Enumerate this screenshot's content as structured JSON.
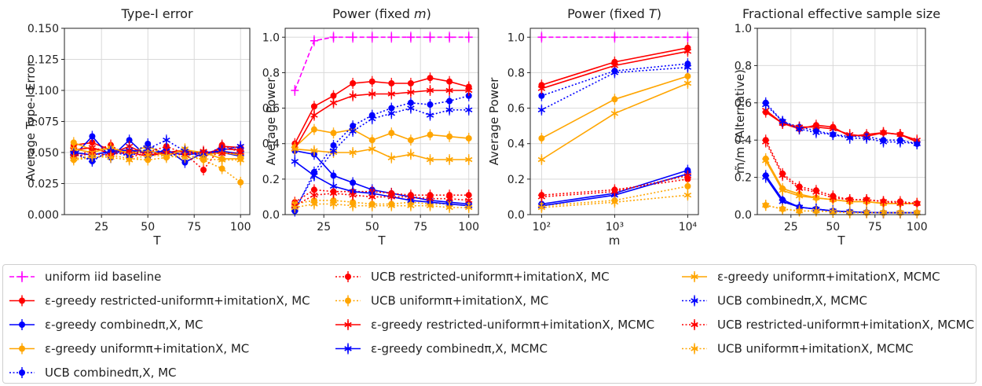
{
  "chart_data": [
    {
      "type": "line",
      "title": "Type-I error",
      "xlabel": "T",
      "ylabel": "Average Type-I Error",
      "xlim": [
        5,
        105
      ],
      "ylim": [
        0,
        0.15
      ],
      "xticks": [
        "25",
        "50",
        "75",
        "100"
      ],
      "yticks": [
        "0.000",
        "0.025",
        "0.050",
        "0.075",
        "0.100",
        "0.125",
        "0.150"
      ],
      "grid": true,
      "x": [
        10,
        20,
        30,
        40,
        50,
        60,
        70,
        80,
        90,
        100
      ],
      "series": [
        {
          "key": "eg_ru_mc",
          "values": [
            0.056,
            0.058,
            0.052,
            0.05,
            0.047,
            0.05,
            0.052,
            0.046,
            0.055,
            0.054
          ]
        },
        {
          "key": "eg_comb_mc",
          "values": [
            0.047,
            0.063,
            0.046,
            0.06,
            0.046,
            0.053,
            0.042,
            0.05,
            0.05,
            0.047
          ]
        },
        {
          "key": "eg_unif_mc",
          "values": [
            0.058,
            0.052,
            0.053,
            0.05,
            0.055,
            0.048,
            0.052,
            0.05,
            0.045,
            0.045
          ]
        },
        {
          "key": "ucb_comb_mc",
          "values": [
            0.05,
            0.043,
            0.052,
            0.048,
            0.057,
            0.047,
            0.05,
            0.047,
            0.055,
            0.052
          ]
        },
        {
          "key": "ucb_ru_mc",
          "values": [
            0.048,
            0.051,
            0.056,
            0.046,
            0.05,
            0.055,
            0.049,
            0.036,
            0.056,
            0.05
          ]
        },
        {
          "key": "ucb_unif_mc",
          "values": [
            0.044,
            0.046,
            0.048,
            0.045,
            0.044,
            0.046,
            0.049,
            0.044,
            0.037,
            0.026
          ]
        },
        {
          "key": "eg_ru_mcmc",
          "values": [
            0.052,
            0.054,
            0.049,
            0.055,
            0.048,
            0.05,
            0.051,
            0.049,
            0.053,
            0.052
          ]
        },
        {
          "key": "eg_comb_mcmc",
          "values": [
            0.05,
            0.048,
            0.051,
            0.052,
            0.05,
            0.051,
            0.048,
            0.05,
            0.051,
            0.049
          ]
        },
        {
          "key": "eg_unif_mcmc",
          "values": [
            0.053,
            0.05,
            0.054,
            0.049,
            0.052,
            0.047,
            0.053,
            0.048,
            0.05,
            0.048
          ]
        },
        {
          "key": "ucb_comb_mcmc",
          "values": [
            0.049,
            0.044,
            0.051,
            0.047,
            0.053,
            0.06,
            0.051,
            0.049,
            0.052,
            0.055
          ]
        },
        {
          "key": "ucb_ru_mcmc",
          "values": [
            0.047,
            0.049,
            0.048,
            0.051,
            0.049,
            0.05,
            0.048,
            0.051,
            0.049,
            0.05
          ]
        },
        {
          "key": "ucb_unif_mcmc",
          "values": [
            0.045,
            0.047,
            0.046,
            0.044,
            0.048,
            0.047,
            0.046,
            0.045,
            0.044,
            0.044
          ]
        }
      ]
    },
    {
      "type": "line",
      "title": "Power (fixed m)",
      "xlabel": "T",
      "ylabel": "Average Power",
      "xlim": [
        5,
        105
      ],
      "ylim": [
        0,
        1.05
      ],
      "xticks": [
        "25",
        "50",
        "75",
        "100"
      ],
      "yticks": [
        "0.0",
        "0.2",
        "0.4",
        "0.6",
        "0.8",
        "1.0"
      ],
      "grid": true,
      "x": [
        10,
        20,
        30,
        40,
        50,
        60,
        70,
        80,
        90,
        100
      ],
      "series": [
        {
          "key": "uniform",
          "values": [
            0.7,
            0.98,
            1.0,
            1.0,
            1.0,
            1.0,
            1.0,
            1.0,
            1.0,
            1.0
          ]
        },
        {
          "key": "eg_ru_mc",
          "values": [
            0.4,
            0.61,
            0.67,
            0.74,
            0.75,
            0.74,
            0.74,
            0.77,
            0.75,
            0.72
          ]
        },
        {
          "key": "eg_comb_mc",
          "values": [
            0.36,
            0.34,
            0.22,
            0.18,
            0.14,
            0.12,
            0.1,
            0.08,
            0.07,
            0.06
          ]
        },
        {
          "key": "eg_unif_mc",
          "values": [
            0.38,
            0.48,
            0.46,
            0.48,
            0.42,
            0.46,
            0.42,
            0.45,
            0.44,
            0.43
          ]
        },
        {
          "key": "ucb_comb_mc",
          "values": [
            0.02,
            0.24,
            0.39,
            0.5,
            0.56,
            0.6,
            0.63,
            0.62,
            0.64,
            0.67
          ]
        },
        {
          "key": "ucb_ru_mc",
          "values": [
            0.07,
            0.14,
            0.13,
            0.13,
            0.13,
            0.12,
            0.11,
            0.11,
            0.11,
            0.11
          ]
        },
        {
          "key": "ucb_unif_mc",
          "values": [
            0.06,
            0.08,
            0.08,
            0.07,
            0.06,
            0.06,
            0.07,
            0.06,
            0.06,
            0.05
          ]
        },
        {
          "key": "eg_ru_mcmc",
          "values": [
            0.37,
            0.56,
            0.63,
            0.67,
            0.68,
            0.68,
            0.69,
            0.7,
            0.7,
            0.7
          ]
        },
        {
          "key": "eg_comb_mcmc",
          "values": [
            0.3,
            0.22,
            0.16,
            0.13,
            0.12,
            0.1,
            0.08,
            0.07,
            0.06,
            0.05
          ]
        },
        {
          "key": "eg_unif_mcmc",
          "values": [
            0.37,
            0.36,
            0.35,
            0.35,
            0.37,
            0.32,
            0.34,
            0.31,
            0.31,
            0.31
          ]
        },
        {
          "key": "ucb_comb_mcmc",
          "values": [
            0.03,
            0.22,
            0.36,
            0.47,
            0.54,
            0.57,
            0.6,
            0.56,
            0.59,
            0.59
          ]
        },
        {
          "key": "ucb_ru_mcmc",
          "values": [
            0.05,
            0.11,
            0.12,
            0.11,
            0.1,
            0.1,
            0.1,
            0.09,
            0.09,
            0.08
          ]
        },
        {
          "key": "ucb_unif_mcmc",
          "values": [
            0.04,
            0.06,
            0.06,
            0.05,
            0.05,
            0.05,
            0.05,
            0.05,
            0.04,
            0.04
          ]
        }
      ]
    },
    {
      "type": "line",
      "title": "Power (fixed T)",
      "xlabel": "m",
      "ylabel": "Average Power",
      "xscale": "log",
      "xlim": [
        70,
        14000
      ],
      "ylim": [
        0,
        1.05
      ],
      "xticks": [
        "10²",
        "10³",
        "10⁴"
      ],
      "yticks": [
        "0.0",
        "0.2",
        "0.4",
        "0.6",
        "0.8",
        "1.0"
      ],
      "grid": true,
      "x": [
        100,
        1000,
        10000
      ],
      "series": [
        {
          "key": "uniform",
          "values": [
            1.0,
            1.0,
            1.0
          ]
        },
        {
          "key": "eg_ru_mc",
          "values": [
            0.73,
            0.86,
            0.94
          ]
        },
        {
          "key": "eg_comb_mc",
          "values": [
            0.06,
            0.12,
            0.25
          ]
        },
        {
          "key": "eg_unif_mc",
          "values": [
            0.43,
            0.65,
            0.78
          ]
        },
        {
          "key": "ucb_comb_mc",
          "values": [
            0.67,
            0.81,
            0.85
          ]
        },
        {
          "key": "ucb_ru_mc",
          "values": [
            0.11,
            0.14,
            0.2
          ]
        },
        {
          "key": "ucb_unif_mc",
          "values": [
            0.05,
            0.08,
            0.16
          ]
        },
        {
          "key": "eg_ru_mcmc",
          "values": [
            0.71,
            0.84,
            0.92
          ]
        },
        {
          "key": "eg_comb_mcmc",
          "values": [
            0.05,
            0.11,
            0.23
          ]
        },
        {
          "key": "eg_unif_mcmc",
          "values": [
            0.31,
            0.57,
            0.74
          ]
        },
        {
          "key": "ucb_comb_mcmc",
          "values": [
            0.59,
            0.8,
            0.83
          ]
        },
        {
          "key": "ucb_ru_mcmc",
          "values": [
            0.1,
            0.13,
            0.22
          ]
        },
        {
          "key": "ucb_unif_mcmc",
          "values": [
            0.04,
            0.07,
            0.11
          ]
        }
      ]
    },
    {
      "type": "line",
      "title": "Fractional effective sample size",
      "xlabel": "T",
      "ylabel": "m̃/m (Alternative)",
      "xlim": [
        5,
        105
      ],
      "ylim": [
        0,
        1.0
      ],
      "xticks": [
        "25",
        "50",
        "75",
        "100"
      ],
      "yticks": [
        "0.0",
        "0.2",
        "0.4",
        "0.6",
        "0.8",
        "1.0"
      ],
      "grid": true,
      "x": [
        10,
        20,
        30,
        40,
        50,
        60,
        70,
        80,
        90,
        100
      ],
      "series": [
        {
          "key": "eg_ru_mc",
          "values": [
            0.55,
            0.49,
            0.46,
            0.48,
            0.47,
            0.42,
            0.43,
            0.44,
            0.43,
            0.39
          ]
        },
        {
          "key": "eg_comb_mc",
          "values": [
            0.21,
            0.08,
            0.04,
            0.03,
            0.02,
            0.015,
            0.012,
            0.01,
            0.01,
            0.01
          ]
        },
        {
          "key": "eg_unif_mc",
          "values": [
            0.3,
            0.14,
            0.11,
            0.09,
            0.08,
            0.07,
            0.07,
            0.06,
            0.06,
            0.06
          ]
        },
        {
          "key": "ucb_comb_mc",
          "values": [
            0.6,
            0.5,
            0.47,
            0.45,
            0.43,
            0.42,
            0.42,
            0.4,
            0.4,
            0.38
          ]
        },
        {
          "key": "ucb_ru_mc",
          "values": [
            0.4,
            0.22,
            0.15,
            0.13,
            0.1,
            0.08,
            0.08,
            0.07,
            0.07,
            0.06
          ]
        },
        {
          "key": "ucb_unif_mc",
          "values": [
            0.05,
            0.03,
            0.02,
            0.02,
            0.015,
            0.01,
            0.01,
            0.01,
            0.01,
            0.01
          ]
        },
        {
          "key": "eg_ru_mcmc",
          "values": [
            0.56,
            0.49,
            0.47,
            0.47,
            0.46,
            0.43,
            0.42,
            0.44,
            0.43,
            0.4
          ]
        },
        {
          "key": "eg_comb_mcmc",
          "values": [
            0.2,
            0.07,
            0.04,
            0.03,
            0.02,
            0.015,
            0.012,
            0.01,
            0.01,
            0.01
          ]
        },
        {
          "key": "eg_unif_mcmc",
          "values": [
            0.29,
            0.13,
            0.1,
            0.09,
            0.08,
            0.07,
            0.07,
            0.06,
            0.06,
            0.06
          ]
        },
        {
          "key": "ucb_comb_mcmc",
          "values": [
            0.59,
            0.5,
            0.46,
            0.44,
            0.43,
            0.41,
            0.41,
            0.39,
            0.39,
            0.38
          ]
        },
        {
          "key": "ucb_ru_mcmc",
          "values": [
            0.39,
            0.21,
            0.14,
            0.12,
            0.09,
            0.08,
            0.08,
            0.07,
            0.06,
            0.06
          ]
        },
        {
          "key": "ucb_unif_mcmc",
          "values": [
            0.05,
            0.03,
            0.02,
            0.02,
            0.015,
            0.01,
            0.01,
            0.01,
            0.01,
            0.01
          ]
        }
      ]
    }
  ],
  "legend": [
    {
      "key": "uniform",
      "text": "uniform iid baseline",
      "color": "#ff00ff",
      "dash": "dashed",
      "marker": "plus"
    },
    {
      "key": "eg_ru_mc",
      "text": "ε-greedy restricted-uniformπ+imitationX, MC",
      "color": "#ff0000",
      "dash": "solid",
      "marker": "dot"
    },
    {
      "key": "eg_comb_mc",
      "text": "ε-greedy combinedπ,X, MC",
      "color": "#0000ff",
      "dash": "solid",
      "marker": "dot"
    },
    {
      "key": "eg_unif_mc",
      "text": "ε-greedy uniformπ+imitationX, MC",
      "color": "#ffa500",
      "dash": "solid",
      "marker": "dot"
    },
    {
      "key": "ucb_comb_mc",
      "text": "UCB combinedπ,X, MC",
      "color": "#0000ff",
      "dash": "dotted",
      "marker": "dot"
    },
    {
      "key": "ucb_ru_mc",
      "text": "UCB restricted-uniformπ+imitationX, MC",
      "color": "#ff0000",
      "dash": "dotted",
      "marker": "dot"
    },
    {
      "key": "ucb_unif_mc",
      "text": "UCB uniformπ+imitationX, MC",
      "color": "#ffa500",
      "dash": "dotted",
      "marker": "dot"
    },
    {
      "key": "eg_ru_mcmc",
      "text": "ε-greedy restricted-uniformπ+imitationX, MCMC",
      "color": "#ff0000",
      "dash": "solid",
      "marker": "star"
    },
    {
      "key": "eg_comb_mcmc",
      "text": "ε-greedy combinedπ,X, MCMC",
      "color": "#0000ff",
      "dash": "solid",
      "marker": "star"
    },
    {
      "key": "eg_unif_mcmc",
      "text": "ε-greedy uniformπ+imitationX, MCMC",
      "color": "#ffa500",
      "dash": "solid",
      "marker": "star"
    },
    {
      "key": "ucb_comb_mcmc",
      "text": "UCB combinedπ,X, MCMC",
      "color": "#0000ff",
      "dash": "dotted",
      "marker": "star"
    },
    {
      "key": "ucb_ru_mcmc",
      "text": "UCB restricted-uniformπ+imitationX, MCMC",
      "color": "#ff0000",
      "dash": "dotted",
      "marker": "star"
    },
    {
      "key": "ucb_unif_mcmc",
      "text": "UCB uniformπ+imitationX, MCMC",
      "color": "#ffa500",
      "dash": "dotted",
      "marker": "star"
    }
  ]
}
